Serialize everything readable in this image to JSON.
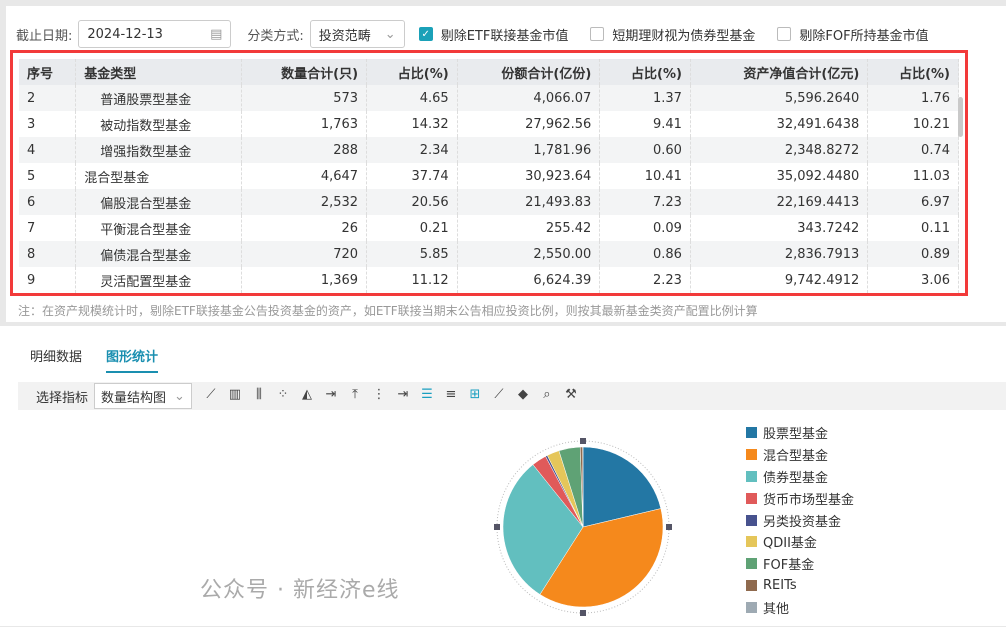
{
  "filters": {
    "date_label": "截止日期:",
    "date_value": "2024-12-13",
    "class_label": "分类方式:",
    "class_value": "投资范畴",
    "checkboxes": [
      {
        "label": "剔除ETF联接基金市值",
        "checked": true
      },
      {
        "label": "短期理财视为债券型基金",
        "checked": false
      },
      {
        "label": "剔除FOF所持基金市值",
        "checked": false
      }
    ]
  },
  "table": {
    "headers": [
      "序号",
      "基金类型",
      "数量合计(只)",
      "占比(%)",
      "份额合计(亿份)",
      "占比(%)",
      "资产净值合计(亿元)",
      "占比(%)"
    ],
    "rows": [
      [
        "2",
        "普通股票型基金",
        "573",
        "4.65",
        "4,066.07",
        "1.37",
        "5,596.2640",
        "1.76"
      ],
      [
        "3",
        "被动指数型基金",
        "1,763",
        "14.32",
        "27,962.56",
        "9.41",
        "32,491.6438",
        "10.21"
      ],
      [
        "4",
        "增强指数型基金",
        "288",
        "2.34",
        "1,781.96",
        "0.60",
        "2,348.8272",
        "0.74"
      ],
      [
        "5",
        "混合型基金",
        "4,647",
        "37.74",
        "30,923.64",
        "10.41",
        "35,092.4480",
        "11.03"
      ],
      [
        "6",
        "偏股混合型基金",
        "2,532",
        "20.56",
        "21,493.83",
        "7.23",
        "22,169.4413",
        "6.97"
      ],
      [
        "7",
        "平衡混合型基金",
        "26",
        "0.21",
        "255.42",
        "0.09",
        "343.7242",
        "0.11"
      ],
      [
        "8",
        "偏债混合型基金",
        "720",
        "5.85",
        "2,550.00",
        "0.86",
        "2,836.7913",
        "0.89"
      ],
      [
        "9",
        "灵活配置型基金",
        "1,369",
        "11.12",
        "6,624.39",
        "2.23",
        "9,742.4912",
        "3.06"
      ]
    ],
    "indented": [
      true,
      true,
      true,
      false,
      true,
      true,
      true,
      true
    ]
  },
  "note": "注：在资产规模统计时，剔除ETF联接基金公告投资基金的资产，如ETF联接当期末公告相应投资比例，则按其最新基金类资产配置比例计算",
  "tabs": [
    {
      "label": "明细数据",
      "active": false
    },
    {
      "label": "图形统计",
      "active": true
    }
  ],
  "toolbar": {
    "indicator_label": "选择指标",
    "indicator_value": "数量结构图",
    "icons": [
      "line-chart-icon",
      "bar-chart-icon",
      "grouped-bar-icon",
      "scatter-icon",
      "area-chart-icon",
      "export-right-icon",
      "upload-icon",
      "list-indent-icon",
      "arrow-right-bar-icon",
      "list-icon",
      "horizontal-lines-icon",
      "add-frame-icon",
      "trend-line-icon",
      "fill-icon",
      "zoom-search-icon",
      "wrench-icon"
    ]
  },
  "watermark": "公众号 · 新经济e线",
  "chart_data": {
    "type": "pie",
    "categories": [
      "股票型基金",
      "混合型基金",
      "债券型基金",
      "货币市场型基金",
      "另类投资基金",
      "QDII基金",
      "FOF基金",
      "REITs",
      "其他"
    ],
    "values": [
      21.3,
      37.74,
      30.2,
      3.0,
      0.4,
      2.5,
      4.3,
      0.5,
      0.06
    ],
    "colors": [
      "#2377a4",
      "#f5891c",
      "#62bfbf",
      "#e05a5a",
      "#47528e",
      "#e5c65a",
      "#5fa275",
      "#8f6a4e",
      "#9eaab3"
    ],
    "legend_position": "right"
  }
}
